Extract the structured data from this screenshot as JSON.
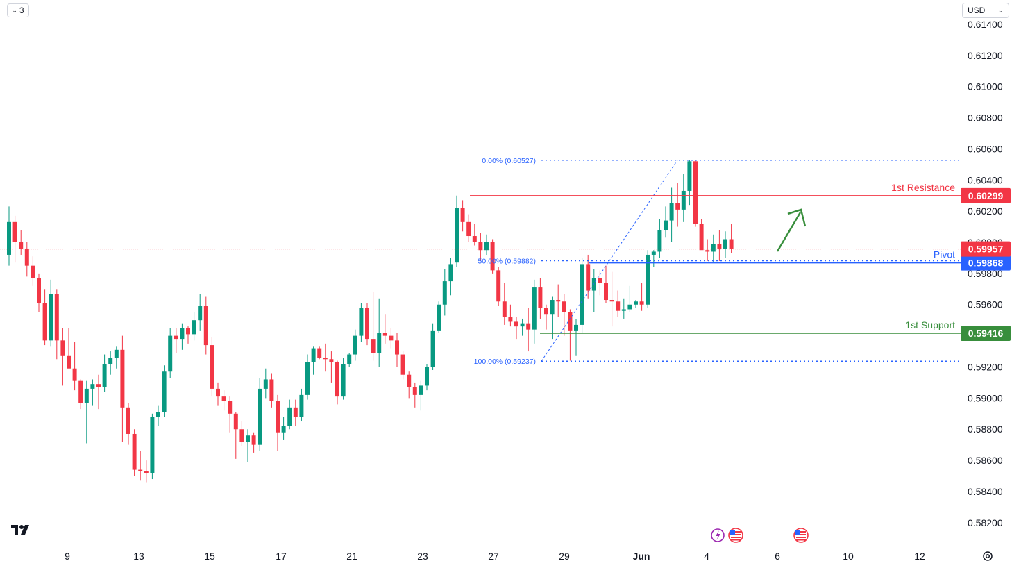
{
  "toolbar": {
    "interval_badge": "3",
    "currency": "USD"
  },
  "colors": {
    "up": "#089981",
    "down": "#f23645",
    "resistance": "#f23645",
    "pivot": "#2962ff",
    "support": "#388e3c",
    "fib": "#2962ff",
    "arrow": "#388e3c"
  },
  "chart_data": {
    "type": "candlestick",
    "y_axis": {
      "ticks": [
        "0.61400",
        "0.61200",
        "0.61000",
        "0.60800",
        "0.60600",
        "0.60400",
        "0.60200",
        "0.60000",
        "0.59800",
        "0.59600",
        "0.59400",
        "0.59200",
        "0.59000",
        "0.58800",
        "0.58600",
        "0.58400",
        "0.58200"
      ],
      "ylim": [
        0.581,
        0.6149
      ]
    },
    "x_axis": {
      "ticks": [
        "9",
        "13",
        "15",
        "17",
        "21",
        "23",
        "27",
        "29",
        "Jun",
        "4",
        "6",
        "10",
        "12"
      ]
    },
    "levels": [
      {
        "name": "1st Resistance",
        "value": 0.60299,
        "label": "0.60299",
        "role": "resistance"
      },
      {
        "name": "Pivot",
        "value": 0.59868,
        "label": "0.59868",
        "role": "pivot"
      },
      {
        "name": "1st Support",
        "value": 0.59416,
        "label": "0.59416",
        "role": "support"
      }
    ],
    "current_price": {
      "value": 0.59957,
      "label": "0.59957"
    },
    "fibonacci": [
      {
        "label": "0.00% (0.60527)",
        "value": 0.60527
      },
      {
        "label": "50.00% (0.59882)",
        "value": 0.59882
      },
      {
        "label": "100.00% (0.59237)",
        "value": 0.59237
      }
    ],
    "candles": [
      [
        0.5992,
        0.6023,
        0.5985,
        0.6013
      ],
      [
        0.6013,
        0.6017,
        0.5987,
        0.6
      ],
      [
        0.6,
        0.6008,
        0.5992,
        0.5996
      ],
      [
        0.5996,
        0.6,
        0.5978,
        0.5985
      ],
      [
        0.5985,
        0.5991,
        0.5972,
        0.5977
      ],
      [
        0.5977,
        0.598,
        0.5955,
        0.5961
      ],
      [
        0.5961,
        0.597,
        0.5934,
        0.5937
      ],
      [
        0.5937,
        0.5976,
        0.5933,
        0.5967
      ],
      [
        0.5967,
        0.597,
        0.5925,
        0.5937
      ],
      [
        0.5937,
        0.5945,
        0.5908,
        0.5927
      ],
      [
        0.5927,
        0.5945,
        0.592,
        0.5919
      ],
      [
        0.5919,
        0.5936,
        0.5905,
        0.5911
      ],
      [
        0.5911,
        0.5912,
        0.5893,
        0.5897
      ],
      [
        0.5897,
        0.5911,
        0.5871,
        0.5906
      ],
      [
        0.5906,
        0.5912,
        0.5895,
        0.5909
      ],
      [
        0.5909,
        0.5915,
        0.5893,
        0.5907
      ],
      [
        0.5907,
        0.5928,
        0.5904,
        0.5922
      ],
      [
        0.5922,
        0.593,
        0.5915,
        0.5926
      ],
      [
        0.5926,
        0.5933,
        0.5919,
        0.5931
      ],
      [
        0.5931,
        0.594,
        0.5872,
        0.5894
      ],
      [
        0.5894,
        0.5897,
        0.587,
        0.5877
      ],
      [
        0.5877,
        0.588,
        0.585,
        0.5854
      ],
      [
        0.5854,
        0.5866,
        0.5847,
        0.5853
      ],
      [
        0.5853,
        0.586,
        0.5846,
        0.5852
      ],
      [
        0.5852,
        0.589,
        0.5848,
        0.5888
      ],
      [
        0.5888,
        0.5895,
        0.5882,
        0.5891
      ],
      [
        0.5891,
        0.5921,
        0.5888,
        0.5917
      ],
      [
        0.5917,
        0.5945,
        0.5913,
        0.594
      ],
      [
        0.594,
        0.5945,
        0.5929,
        0.5938
      ],
      [
        0.5938,
        0.5948,
        0.5931,
        0.5945
      ],
      [
        0.5945,
        0.5946,
        0.5935,
        0.5941
      ],
      [
        0.5941,
        0.5955,
        0.5937,
        0.595
      ],
      [
        0.595,
        0.5967,
        0.5943,
        0.5959
      ],
      [
        0.5959,
        0.5965,
        0.5928,
        0.5934
      ],
      [
        0.5934,
        0.5939,
        0.5901,
        0.5906
      ],
      [
        0.5906,
        0.591,
        0.5895,
        0.5901
      ],
      [
        0.5901,
        0.5905,
        0.5892,
        0.5898
      ],
      [
        0.5898,
        0.5901,
        0.5878,
        0.589
      ],
      [
        0.589,
        0.5891,
        0.5861,
        0.588
      ],
      [
        0.588,
        0.5885,
        0.5869,
        0.5872
      ],
      [
        0.5872,
        0.588,
        0.5859,
        0.5876
      ],
      [
        0.5876,
        0.5878,
        0.5865,
        0.587
      ],
      [
        0.587,
        0.5913,
        0.5866,
        0.5906
      ],
      [
        0.5906,
        0.5919,
        0.59,
        0.5912
      ],
      [
        0.5912,
        0.5916,
        0.5894,
        0.5898
      ],
      [
        0.5898,
        0.5902,
        0.5866,
        0.5878
      ],
      [
        0.5878,
        0.5888,
        0.5873,
        0.5882
      ],
      [
        0.5882,
        0.5899,
        0.588,
        0.5894
      ],
      [
        0.5894,
        0.5899,
        0.5882,
        0.5888
      ],
      [
        0.5888,
        0.5906,
        0.5885,
        0.5902
      ],
      [
        0.5902,
        0.5928,
        0.5899,
        0.5923
      ],
      [
        0.5923,
        0.5933,
        0.5915,
        0.5932
      ],
      [
        0.5932,
        0.5933,
        0.5925,
        0.5926
      ],
      [
        0.5926,
        0.5935,
        0.5917,
        0.5925
      ],
      [
        0.5925,
        0.593,
        0.591,
        0.5923
      ],
      [
        0.5923,
        0.5924,
        0.5896,
        0.5901
      ],
      [
        0.5901,
        0.5926,
        0.5899,
        0.5922
      ],
      [
        0.5922,
        0.5929,
        0.592,
        0.5928
      ],
      [
        0.5928,
        0.5944,
        0.5924,
        0.594
      ],
      [
        0.594,
        0.5961,
        0.5936,
        0.5958
      ],
      [
        0.5958,
        0.5961,
        0.5934,
        0.5938
      ],
      [
        0.5938,
        0.5968,
        0.5924,
        0.5929
      ],
      [
        0.5929,
        0.5964,
        0.592,
        0.5942
      ],
      [
        0.5942,
        0.5954,
        0.5935,
        0.594
      ],
      [
        0.594,
        0.5945,
        0.5932,
        0.5937
      ],
      [
        0.5937,
        0.5942,
        0.592,
        0.5928
      ],
      [
        0.5928,
        0.593,
        0.5912,
        0.5915
      ],
      [
        0.5915,
        0.5917,
        0.59,
        0.5907
      ],
      [
        0.5907,
        0.591,
        0.5894,
        0.5902
      ],
      [
        0.5902,
        0.5911,
        0.5892,
        0.5908
      ],
      [
        0.5908,
        0.5922,
        0.5905,
        0.592
      ],
      [
        0.592,
        0.5948,
        0.5918,
        0.5943
      ],
      [
        0.5943,
        0.5962,
        0.5942,
        0.596
      ],
      [
        0.596,
        0.5983,
        0.5953,
        0.5975
      ],
      [
        0.5975,
        0.599,
        0.5966,
        0.5986
      ],
      [
        0.5987,
        0.603,
        0.5984,
        0.6022
      ],
      [
        0.6022,
        0.6027,
        0.6007,
        0.6013
      ],
      [
        0.6013,
        0.6018,
        0.6,
        0.6004
      ],
      [
        0.6004,
        0.6012,
        0.5998,
        0.6
      ],
      [
        0.6,
        0.6006,
        0.5988,
        0.5995
      ],
      [
        0.5995,
        0.6005,
        0.5992,
        0.6
      ],
      [
        0.6,
        0.6002,
        0.598,
        0.5982
      ],
      [
        0.5982,
        0.5984,
        0.5959,
        0.5962
      ],
      [
        0.5962,
        0.5974,
        0.5947,
        0.5952
      ],
      [
        0.5952,
        0.596,
        0.5946,
        0.5949
      ],
      [
        0.5949,
        0.5952,
        0.5938,
        0.5946
      ],
      [
        0.5946,
        0.5951,
        0.594,
        0.5948
      ],
      [
        0.5948,
        0.5958,
        0.593,
        0.5944
      ],
      [
        0.5944,
        0.5976,
        0.5935,
        0.5971
      ],
      [
        0.5971,
        0.5977,
        0.5951,
        0.5958
      ],
      [
        0.5958,
        0.596,
        0.5944,
        0.5954
      ],
      [
        0.5954,
        0.5965,
        0.5938,
        0.5963
      ],
      [
        0.5963,
        0.5973,
        0.5952,
        0.5962
      ],
      [
        0.5962,
        0.5967,
        0.594,
        0.5955
      ],
      [
        0.5955,
        0.5957,
        0.5924,
        0.5943
      ],
      [
        0.5943,
        0.5951,
        0.5927,
        0.5947
      ],
      [
        0.5947,
        0.599,
        0.5942,
        0.5986
      ],
      [
        0.5986,
        0.5992,
        0.5964,
        0.5969
      ],
      [
        0.5969,
        0.5983,
        0.5955,
        0.5977
      ],
      [
        0.5977,
        0.5982,
        0.5966,
        0.5974
      ],
      [
        0.5974,
        0.5985,
        0.5961,
        0.5963
      ],
      [
        0.5963,
        0.5981,
        0.5946,
        0.5962
      ],
      [
        0.5962,
        0.5969,
        0.5952,
        0.5956
      ],
      [
        0.5956,
        0.5964,
        0.5951,
        0.5957
      ],
      [
        0.5957,
        0.5972,
        0.5955,
        0.596
      ],
      [
        0.596,
        0.5963,
        0.5958,
        0.5962
      ],
      [
        0.5962,
        0.5974,
        0.5956,
        0.596
      ],
      [
        0.596,
        0.5995,
        0.5958,
        0.5992
      ],
      [
        0.5992,
        0.5995,
        0.5984,
        0.5994
      ],
      [
        0.5994,
        0.6015,
        0.599,
        0.6008
      ],
      [
        0.6008,
        0.6023,
        0.6003,
        0.6014
      ],
      [
        0.6014,
        0.6035,
        0.6,
        0.6025
      ],
      [
        0.6025,
        0.6038,
        0.601,
        0.6021
      ],
      [
        0.6021,
        0.6044,
        0.6013,
        0.6033
      ],
      [
        0.6033,
        0.6053,
        0.6024,
        0.6052
      ],
      [
        0.6052,
        0.6053,
        0.601,
        0.6012
      ],
      [
        0.6012,
        0.6015,
        0.5998,
        0.5995
      ],
      [
        0.5995,
        0.6002,
        0.5988,
        0.5994
      ],
      [
        0.5994,
        0.6005,
        0.5987,
        0.5999
      ],
      [
        0.5999,
        0.6008,
        0.5988,
        0.5996
      ],
      [
        0.5996,
        0.6007,
        0.599,
        0.6002
      ],
      [
        0.6002,
        0.6012,
        0.5993,
        0.5996
      ]
    ]
  }
}
